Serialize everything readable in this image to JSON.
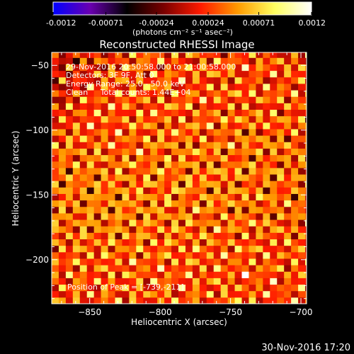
{
  "chart_data": [
    {
      "type": "colorbar",
      "ticks": [
        -0.0012,
        -0.00071,
        -0.00024,
        0.00024,
        0.00071,
        0.0012
      ],
      "tick_labels": [
        "-0.0012",
        "-0.00071",
        "-0.00024",
        "0.00024",
        "0.00071",
        "0.0012"
      ],
      "range": [
        -0.0012,
        0.0012
      ],
      "unit_label": "(photons cm⁻² s⁻¹ asec⁻²)",
      "colormap": [
        "#0000ff",
        "#6a00b0",
        "#000000",
        "#7a0000",
        "#ff1a00",
        "#ff9a00",
        "#ffff60",
        "#ffffff"
      ]
    },
    {
      "type": "heatmap",
      "title": "Reconstructed RHESSI Image",
      "xlabel": "Heliocentric X (arcsec)",
      "ylabel": "Heliocentric Y (arcsec)",
      "xlim": [
        -877,
        -696
      ],
      "ylim": [
        -234,
        -40
      ],
      "xticks": [
        -850,
        -800,
        -750,
        -700
      ],
      "xtick_labels": [
        "−850",
        "−800",
        "−750",
        "−700"
      ],
      "yticks": [
        -200,
        -150,
        -100,
        -50
      ],
      "ytick_labels": [
        "−200",
        "−150",
        "−100",
        "−50"
      ],
      "annotations": [
        "29-Nov-2016 20:50:58.000 to 21:00:58.000",
        "Detectors: 3F 9F, Att 0",
        "Energy Range: 25.0 - 50.0 keV",
        "Clean     Total counts: 1.44E+04"
      ],
      "peak_label": "Position of Peak = [-739,-211]",
      "peak": [
        -739,
        -211
      ],
      "fringe_pattern": {
        "description": "interference fringe map, values in colorbar units",
        "period_arcsec": 10,
        "peak_value": 0.0012,
        "min_value": -0.0012
      }
    }
  ],
  "footer": {
    "timestamp": "30-Nov-2016 17:20"
  }
}
